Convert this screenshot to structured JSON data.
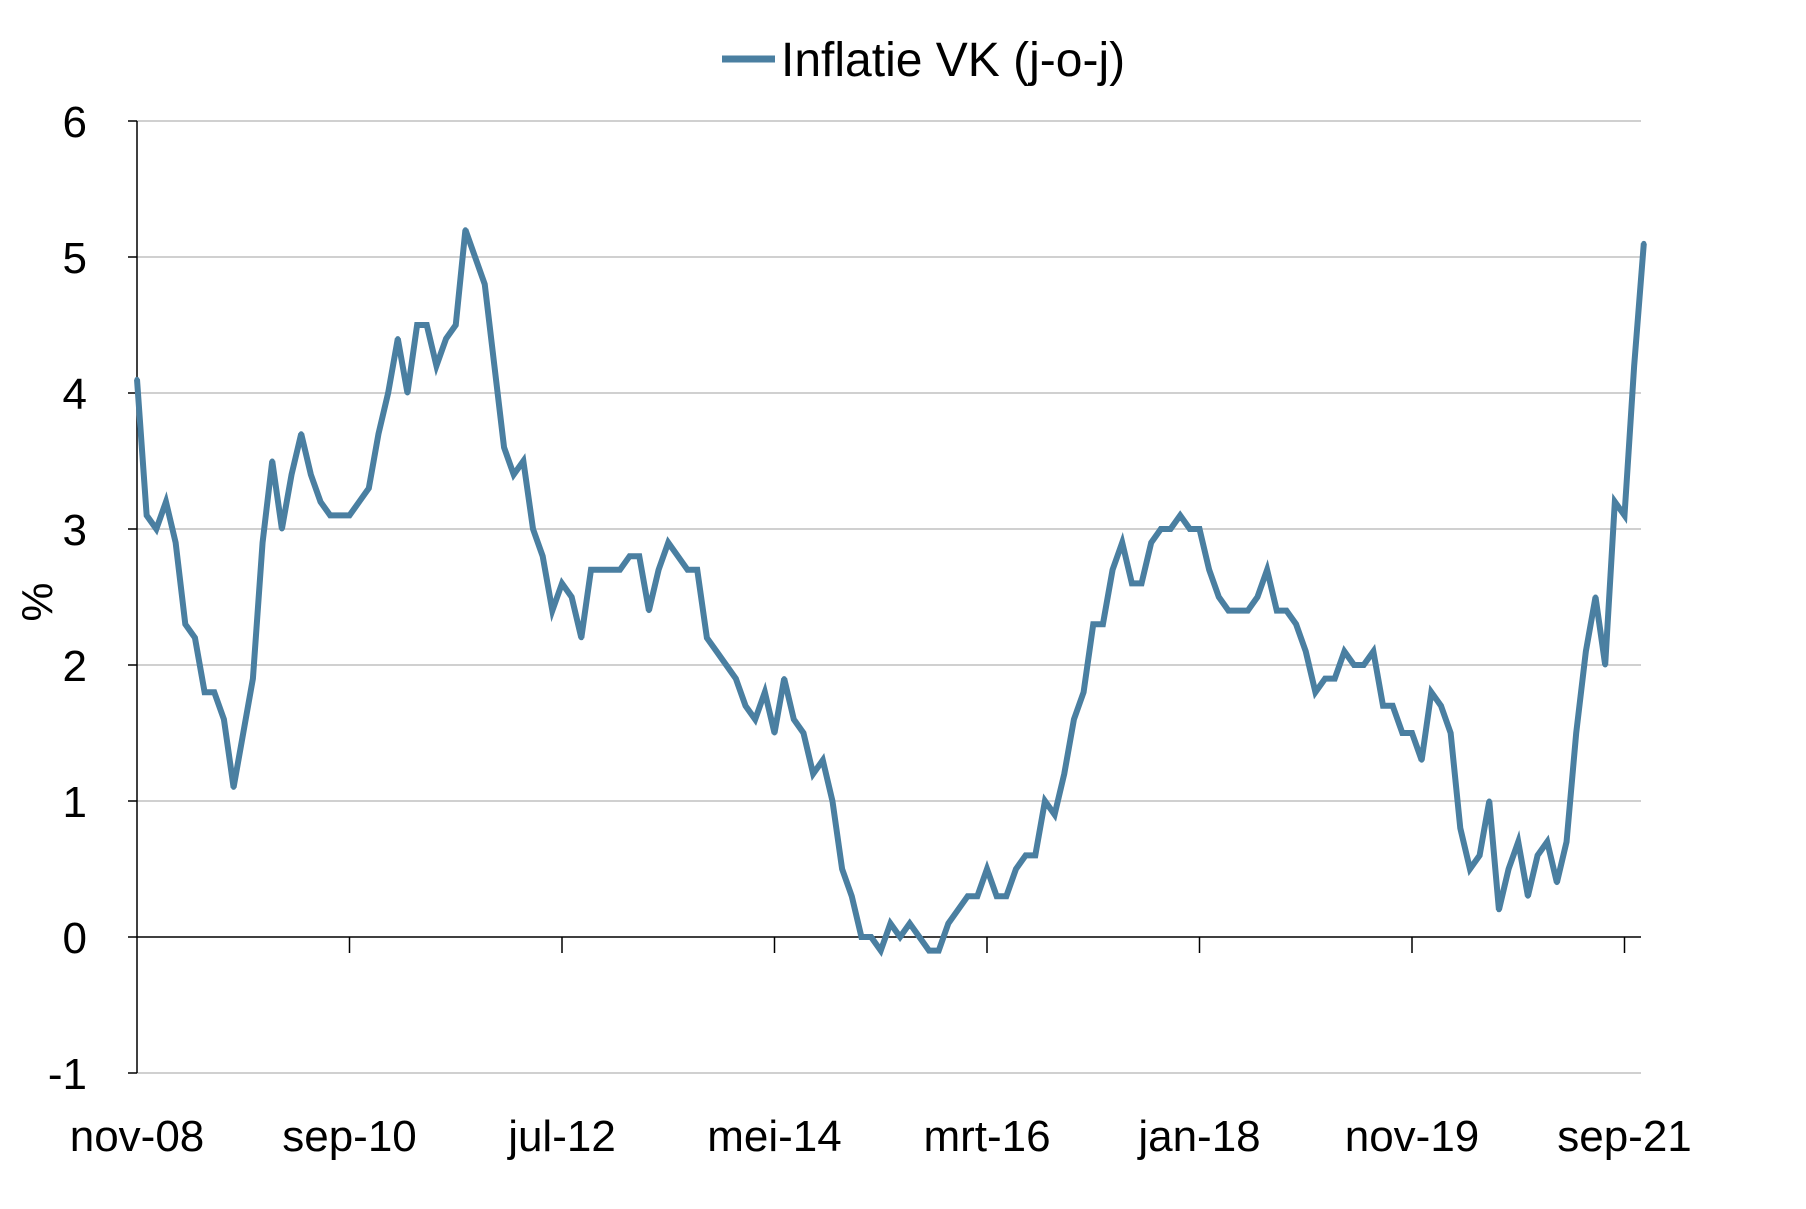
{
  "chart_data": {
    "type": "line",
    "title": "",
    "xlabel": "",
    "ylabel": "%",
    "ylim": [
      -1,
      6
    ],
    "yticks": [
      "6",
      "5",
      "4",
      "3",
      "2",
      "1",
      "0",
      "-1"
    ],
    "xtick_labels": [
      "nov-08",
      "sep-10",
      "jul-12",
      "mei-14",
      "mrt-16",
      "jan-18",
      "nov-19",
      "sep-21"
    ],
    "grid": "horizontal",
    "legend_position": "top-center",
    "colors": {
      "series": "#4a7fa1",
      "grid": "#d0d0d0",
      "axis": "#000000"
    },
    "series": [
      {
        "name": "Inflatie VK (j-o-j)",
        "start": "nov-08",
        "values": [
          4.1,
          3.1,
          3.0,
          3.2,
          2.9,
          2.3,
          2.2,
          1.8,
          1.8,
          1.6,
          1.1,
          1.5,
          1.9,
          2.9,
          3.5,
          3.0,
          3.4,
          3.7,
          3.4,
          3.2,
          3.1,
          3.1,
          3.1,
          3.2,
          3.3,
          3.7,
          4.0,
          4.4,
          4.0,
          4.5,
          4.5,
          4.2,
          4.4,
          4.5,
          5.2,
          5.0,
          4.8,
          4.2,
          3.6,
          3.4,
          3.5,
          3.0,
          2.8,
          2.4,
          2.6,
          2.5,
          2.2,
          2.7,
          2.7,
          2.7,
          2.7,
          2.8,
          2.8,
          2.4,
          2.7,
          2.9,
          2.8,
          2.7,
          2.7,
          2.2,
          2.1,
          2.0,
          1.9,
          1.7,
          1.6,
          1.8,
          1.5,
          1.9,
          1.6,
          1.5,
          1.2,
          1.3,
          1.0,
          0.5,
          0.3,
          0.0,
          0.0,
          -0.1,
          0.1,
          0.0,
          0.1,
          0.0,
          -0.1,
          -0.1,
          0.1,
          0.2,
          0.3,
          0.3,
          0.5,
          0.3,
          0.3,
          0.5,
          0.6,
          0.6,
          1.0,
          0.9,
          1.2,
          1.6,
          1.8,
          2.3,
          2.3,
          2.7,
          2.9,
          2.6,
          2.6,
          2.9,
          3.0,
          3.0,
          3.1,
          3.0,
          3.0,
          2.7,
          2.5,
          2.4,
          2.4,
          2.4,
          2.5,
          2.7,
          2.4,
          2.4,
          2.3,
          2.1,
          1.8,
          1.9,
          1.9,
          2.1,
          2.0,
          2.0,
          2.1,
          1.7,
          1.7,
          1.5,
          1.5,
          1.3,
          1.8,
          1.7,
          1.5,
          0.8,
          0.5,
          0.6,
          1.0,
          0.2,
          0.5,
          0.7,
          0.3,
          0.6,
          0.7,
          0.4,
          0.7,
          1.5,
          2.1,
          2.5,
          2.0,
          3.2,
          3.1,
          4.2,
          5.1
        ]
      }
    ]
  }
}
